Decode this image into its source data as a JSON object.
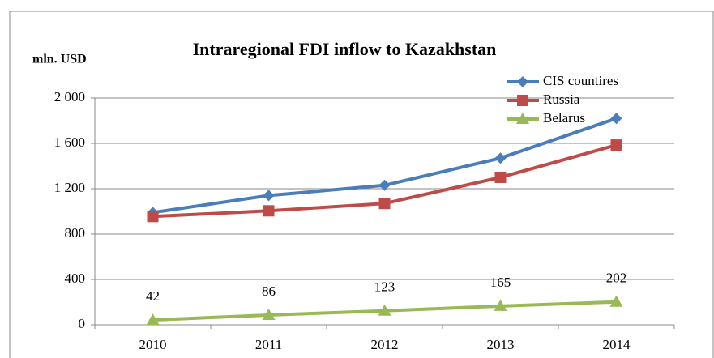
{
  "chart_data": {
    "type": "line",
    "title": "Intraregional FDI inflow to Kazakhstan",
    "y_label": "mln. USD",
    "categories": [
      "2010",
      "2011",
      "2012",
      "2013",
      "2014"
    ],
    "series": [
      {
        "name": "CIS countires",
        "color": "#4a7ebb",
        "marker": "diamond",
        "values": [
          990,
          1140,
          1230,
          1470,
          1820
        ]
      },
      {
        "name": "Russia",
        "color": "#be4b48",
        "marker": "square",
        "values": [
          955,
          1005,
          1070,
          1300,
          1585
        ]
      },
      {
        "name": "Belarus",
        "color": "#98b954",
        "marker": "triangle",
        "values": [
          42,
          86,
          123,
          165,
          202
        ],
        "data_labels": true
      }
    ],
    "ylim": [
      0,
      2000
    ],
    "yticks": [
      0,
      400,
      800,
      {
        "value": 1200,
        "label": "1 200"
      },
      {
        "value": 1600,
        "label": "1 600"
      },
      {
        "value": 2000,
        "label": "2 000"
      }
    ],
    "grid": true,
    "legend": "top-right"
  }
}
